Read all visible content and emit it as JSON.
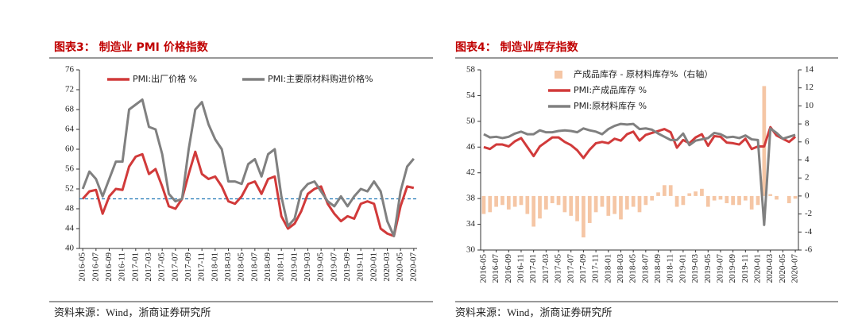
{
  "chart_data": [
    {
      "type": "line",
      "title": "图表3： 制造业 PMI 价格指数",
      "source": "资料来源：Wind，浙商证券研究所",
      "categories": [
        "2016-05",
        null,
        "2016-07",
        null,
        "2016-09",
        null,
        "2016-11",
        null,
        "2017-01",
        null,
        "2017-03",
        null,
        "2017-05",
        null,
        "2017-07",
        null,
        "2017-09",
        null,
        "2017-11",
        null,
        "2018-01",
        null,
        "2018-03",
        null,
        "2018-05",
        null,
        "2018-07",
        null,
        "2018-09",
        null,
        "2018-11",
        null,
        "2019-01",
        null,
        "2019-03",
        null,
        "2019-05",
        null,
        "2019-07",
        null,
        "2019-09",
        null,
        "2019-11",
        null,
        "2020-01",
        null,
        "2020-03",
        null,
        "2020-05",
        null,
        "2020-07"
      ],
      "series": [
        {
          "name": "PMI:出厂价格 %",
          "color": "#d13a3a",
          "values": [
            50.0,
            51.5,
            51.8,
            47.0,
            50.5,
            52.0,
            51.8,
            56.5,
            58.5,
            59.0,
            55.0,
            56.0,
            52.5,
            48.5,
            48.0,
            50.0,
            55.0,
            59.5,
            55.0,
            54.0,
            54.5,
            52.5,
            49.5,
            49.0,
            50.5,
            53.0,
            53.5,
            51.0,
            54.0,
            54.5,
            46.5,
            44.0,
            45.0,
            47.5,
            51.0,
            52.0,
            52.5,
            49.0,
            47.0,
            45.5,
            46.5,
            46.0,
            49.0,
            49.5,
            49.0,
            44.0,
            43.0,
            42.5,
            48.5,
            52.5,
            52.2
          ]
        },
        {
          "name": "PMI:主要原材料购进价格%",
          "color": "#808080",
          "values": [
            52.0,
            55.5,
            54.0,
            50.5,
            54.0,
            57.5,
            57.5,
            68.0,
            69.0,
            70.0,
            64.5,
            64.0,
            59.0,
            51.0,
            49.5,
            50.0,
            60.0,
            68.0,
            69.5,
            65.0,
            62.0,
            60.0,
            53.5,
            53.5,
            53.0,
            57.0,
            58.0,
            54.5,
            59.0,
            60.0,
            50.5,
            44.5,
            46.0,
            51.5,
            53.0,
            53.5,
            51.5,
            49.5,
            48.5,
            50.5,
            48.5,
            50.5,
            52.0,
            51.5,
            53.5,
            51.5,
            45.5,
            42.5,
            51.5,
            56.5,
            58.1
          ]
        }
      ],
      "reference_line": {
        "value": 50,
        "color": "#1f77b4"
      },
      "ylim": [
        40,
        76
      ],
      "yticks": [
        40,
        44,
        48,
        52,
        56,
        60,
        64,
        68,
        72,
        76
      ],
      "legend": "top"
    },
    {
      "type": "combo",
      "title": "图表4： 制造业库存指数",
      "source": "资料来源：Wind，浙商证券研究所",
      "categories": [
        "2016-05",
        null,
        "2016-07",
        null,
        "2016-09",
        null,
        "2016-11",
        null,
        "2017-01",
        null,
        "2017-03",
        null,
        "2017-05",
        null,
        "2017-07",
        null,
        "2017-09",
        null,
        "2017-11",
        null,
        "2018-01",
        null,
        "2018-03",
        null,
        "2018-05",
        null,
        "2018-07",
        null,
        "2018-09",
        null,
        "2018-11",
        null,
        "2019-01",
        null,
        "2019-03",
        null,
        "2019-05",
        null,
        "2019-07",
        null,
        "2019-09",
        null,
        "2019-11",
        null,
        "2020-01",
        null,
        "2020-03",
        null,
        "2020-05",
        null,
        "2020-07"
      ],
      "series": [
        {
          "name": "产成品库存 - 原材料库存%（右轴）",
          "color": "#f5c6a5",
          "kind": "bar",
          "axis": "y2",
          "values": [
            -2.0,
            -1.8,
            -1.2,
            -1.0,
            -1.5,
            -1.2,
            -1.0,
            -2.0,
            -3.4,
            -2.5,
            -1.5,
            -0.8,
            -1.0,
            -1.8,
            -2.2,
            -2.8,
            -4.6,
            -3.0,
            -1.8,
            -1.2,
            -2.2,
            -2.0,
            -2.6,
            -1.5,
            -1.2,
            -1.8,
            -1.0,
            -0.5,
            0.4,
            1.2,
            1.2,
            -1.2,
            -1.0,
            0.3,
            0.5,
            0.8,
            -1.2,
            -0.5,
            -0.4,
            -0.8,
            -1.0,
            -1.0,
            -0.5,
            -1.5,
            -1.0,
            12.2,
            0.2,
            -0.4,
            0.0,
            -0.8,
            -0.3
          ]
        },
        {
          "name": "PMI:产成品库存 %",
          "color": "#d13a3a",
          "kind": "line",
          "values": [
            46.0,
            45.7,
            46.4,
            46.4,
            46.1,
            46.9,
            47.4,
            46.0,
            44.6,
            46.1,
            46.8,
            47.5,
            47.5,
            46.8,
            46.3,
            45.5,
            44.3,
            45.6,
            46.6,
            46.8,
            46.6,
            47.3,
            47.0,
            48.0,
            48.4,
            47.0,
            47.9,
            48.2,
            48.5,
            48.8,
            48.3,
            45.9,
            47.1,
            46.6,
            47.5,
            48.0,
            46.2,
            47.7,
            47.6,
            46.7,
            46.6,
            46.4,
            47.3,
            45.7,
            46.1,
            46.1,
            49.1,
            47.8,
            47.3,
            46.8,
            47.6
          ]
        },
        {
          "name": "PMI:原材料库存 %",
          "color": "#808080",
          "kind": "line",
          "values": [
            48.0,
            47.5,
            47.6,
            47.4,
            47.6,
            48.1,
            48.4,
            48.0,
            48.0,
            48.6,
            48.3,
            48.3,
            48.5,
            48.6,
            48.5,
            48.3,
            48.9,
            48.6,
            48.4,
            48.0,
            48.8,
            49.3,
            49.6,
            49.5,
            49.6,
            48.8,
            48.9,
            48.7,
            48.1,
            47.6,
            47.1,
            47.1,
            48.1,
            46.3,
            47.0,
            47.2,
            47.4,
            48.2,
            48.0,
            47.5,
            47.6,
            47.4,
            47.8,
            47.2,
            47.1,
            33.9,
            48.9,
            48.2,
            47.3,
            47.6,
            47.9
          ]
        }
      ],
      "ylim": [
        30,
        58
      ],
      "yticks": [
        30,
        34,
        38,
        42,
        46,
        50,
        54,
        58
      ],
      "y2lim": [
        -6,
        14
      ],
      "y2ticks": [
        -6,
        -4,
        -2,
        0,
        2,
        4,
        6,
        8,
        10,
        12,
        14
      ],
      "legend": "top-left"
    }
  ]
}
